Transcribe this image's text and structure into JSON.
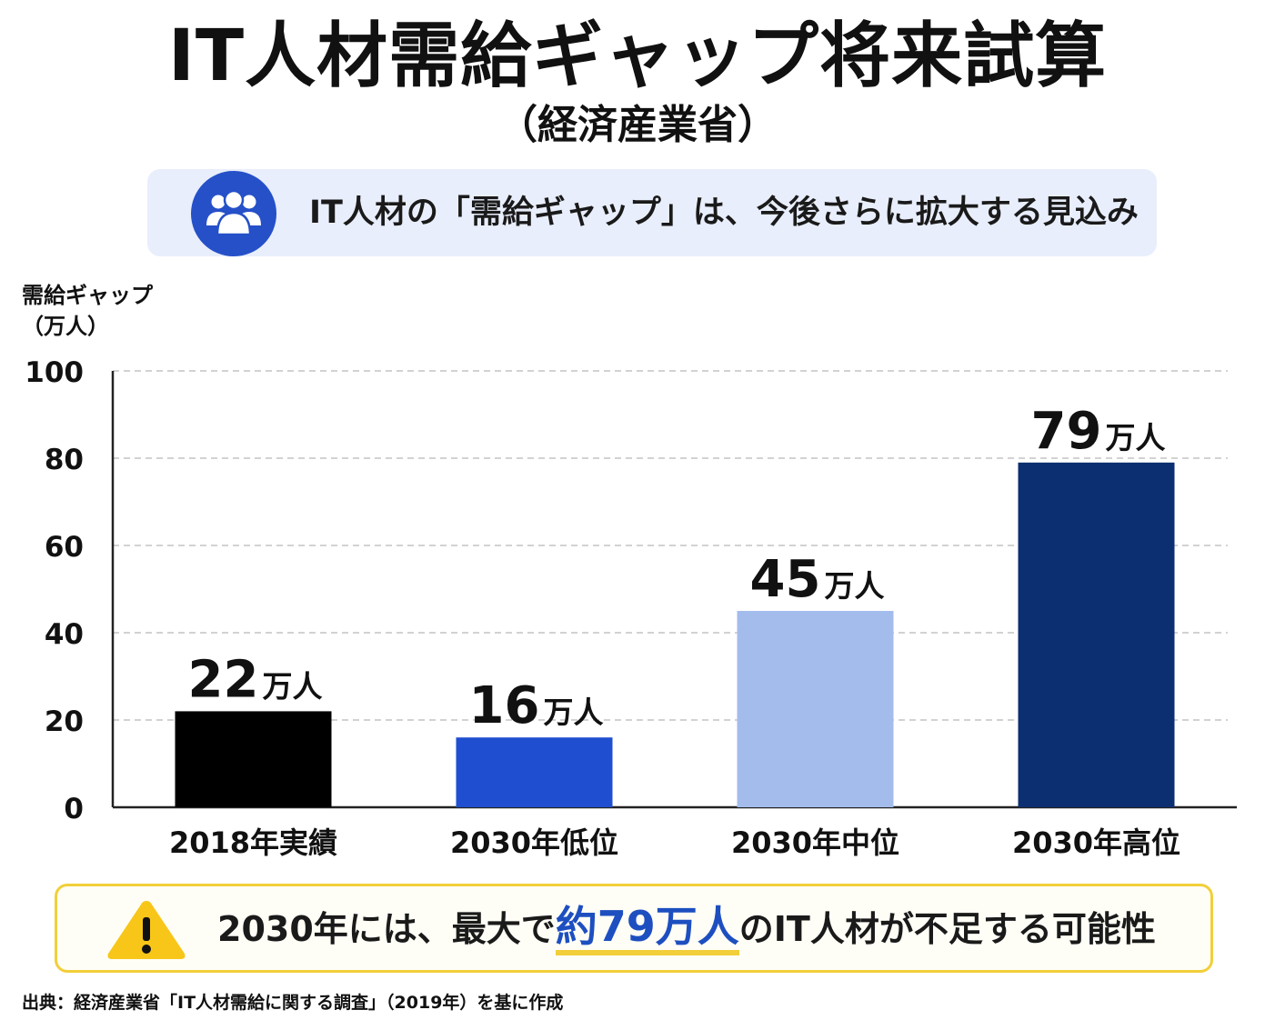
{
  "title": "IT人材需給ギャップ将来試算",
  "subtitle": "（経済産業省）",
  "banner": {
    "icon": "users-icon",
    "text": "IT人材の「需給ギャップ」は、今後さらに拡大する見込み"
  },
  "chart_data": {
    "type": "bar",
    "ylabel": [
      "需給ギャップ",
      "（万人）"
    ],
    "xlabel": "",
    "ylim": [
      0,
      100
    ],
    "yticks": [
      0,
      20,
      40,
      60,
      80,
      100
    ],
    "grid": true,
    "categories": [
      "2018年実績",
      "2030年低位",
      "2030年中位",
      "2030年高位"
    ],
    "values": [
      22,
      16,
      45,
      79
    ],
    "value_unit": "万人",
    "colors": [
      "#000000",
      "#1f4fd0",
      "#a3bcec",
      "#0b2f70"
    ]
  },
  "notice": {
    "icon": "warning-icon",
    "before": "2030年には、最大で",
    "highlight": "約79万人",
    "after": "のIT人材が不足する可能性"
  },
  "source": "出典：経済産業省「IT人材需給に関する調査」（2019年）を基に作成"
}
